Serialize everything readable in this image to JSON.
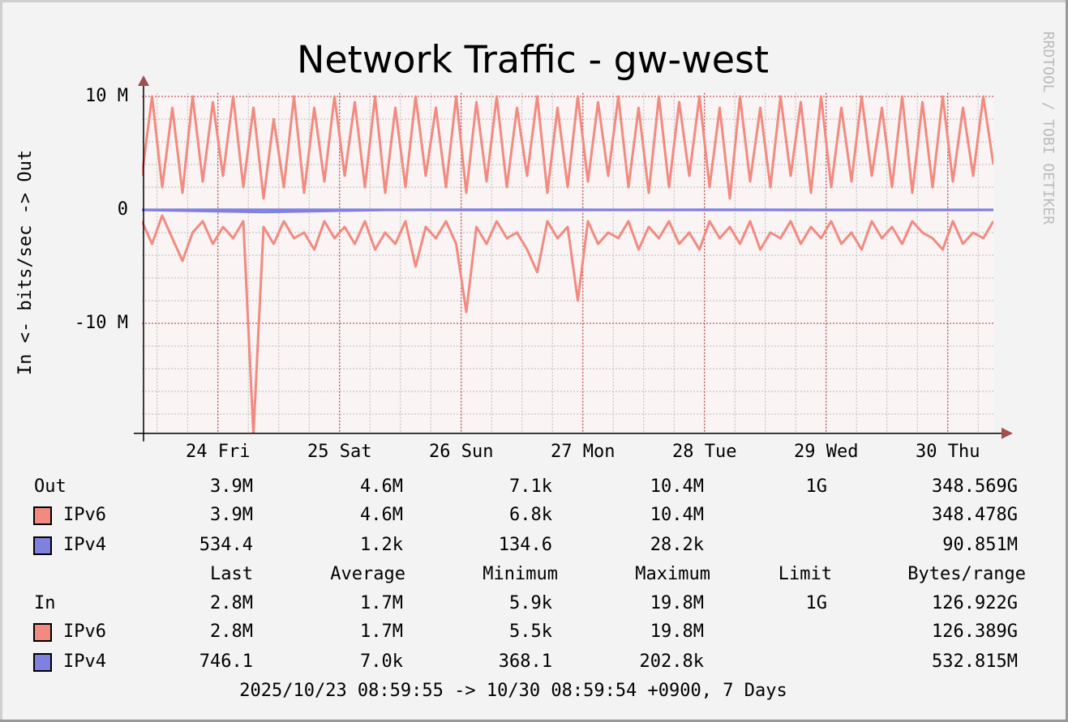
{
  "chart_data": {
    "type": "line",
    "title": "Network Traffic - gw-west",
    "y_label": "In <- bits/sec -> Out",
    "watermark": "RRDTOOL / TOBI OETIKER",
    "xlim": [
      0,
      168
    ],
    "xticks": [
      {
        "value": 15,
        "label": "24 Fri"
      },
      {
        "value": 39,
        "label": "25 Sat"
      },
      {
        "value": 63,
        "label": "26 Sun"
      },
      {
        "value": 87,
        "label": "27 Mon"
      },
      {
        "value": 111,
        "label": "28 Tue"
      },
      {
        "value": 135,
        "label": "29 Wed"
      },
      {
        "value": 159,
        "label": "30 Thu"
      }
    ],
    "ylim": [
      -19.7,
      10.3
    ],
    "yticks": [
      {
        "value": -10,
        "label": "-10 M"
      },
      0,
      {
        "value": 10,
        "label": "10 M"
      }
    ],
    "grid": true,
    "x": [
      0,
      2,
      4,
      6,
      8,
      10,
      12,
      14,
      16,
      18,
      20,
      22,
      24,
      26,
      28,
      30,
      32,
      34,
      36,
      38,
      40,
      42,
      44,
      46,
      48,
      50,
      52,
      54,
      56,
      58,
      60,
      62,
      64,
      66,
      68,
      70,
      72,
      74,
      76,
      78,
      80,
      82,
      84,
      86,
      88,
      90,
      92,
      94,
      96,
      98,
      100,
      102,
      104,
      106,
      108,
      110,
      112,
      114,
      116,
      118,
      120,
      122,
      124,
      126,
      128,
      130,
      132,
      134,
      136,
      138,
      140,
      142,
      144,
      146,
      148,
      150,
      152,
      154,
      156,
      158,
      160,
      162,
      164,
      166,
      168
    ],
    "series": [
      {
        "name": "IPv6",
        "direction": "Out",
        "color": "#f28a80",
        "values": [
          3,
          10,
          2,
          9,
          1.5,
          10,
          2.5,
          9.5,
          3,
          10,
          2,
          9,
          1,
          8,
          2,
          10,
          1.5,
          9,
          2.5,
          10,
          3,
          9.5,
          2,
          10,
          1.5,
          9,
          2,
          10,
          3,
          9,
          2,
          10,
          1.5,
          9.5,
          2.5,
          10,
          2,
          9,
          3,
          10,
          1.5,
          9,
          2,
          10,
          2.5,
          9.5,
          3,
          10,
          2,
          9,
          1.5,
          10,
          2,
          9.5,
          3,
          10,
          2,
          9,
          1,
          10,
          2.5,
          9,
          2,
          10,
          3,
          9.5,
          1.5,
          10,
          2,
          9,
          2.5,
          10,
          3,
          9,
          2,
          10,
          1.5,
          9.5,
          2,
          10,
          2.5,
          9,
          3,
          10,
          4
        ]
      },
      {
        "name": "IPv6",
        "direction": "In",
        "color": "#f28a80",
        "values": [
          -1,
          -3,
          -0.5,
          -2.5,
          -4.5,
          -2,
          -1,
          -3,
          -1.5,
          -2.5,
          -1,
          -19.8,
          -1.5,
          -3,
          -1,
          -2.5,
          -2,
          -3.5,
          -1,
          -2.5,
          -1.5,
          -3,
          -1,
          -3.5,
          -2,
          -3,
          -1,
          -5,
          -1.5,
          -2.5,
          -1,
          -3,
          -9,
          -1.5,
          -3,
          -1,
          -2.5,
          -2,
          -3.5,
          -5.5,
          -1,
          -2.5,
          -1.5,
          -8,
          -1,
          -3,
          -2,
          -2.5,
          -1,
          -3.5,
          -1.5,
          -2.5,
          -1,
          -3,
          -2,
          -3.5,
          -1,
          -2.5,
          -1.5,
          -3,
          -1,
          -3.5,
          -2,
          -2.5,
          -1,
          -3,
          -1.5,
          -2.5,
          -1,
          -3,
          -2,
          -3.5,
          -1,
          -2.5,
          -1.5,
          -3,
          -1,
          -2,
          -2.5,
          -3.5,
          -1,
          -3,
          -2,
          -2.5,
          -1
        ]
      },
      {
        "name": "IPv4",
        "direction": "Out",
        "color": "#8080e0",
        "x": [
          0,
          24,
          48,
          72,
          96,
          120,
          144,
          168
        ],
        "values": [
          0.01,
          0.02,
          0.01,
          0.03,
          0.01,
          0.02,
          0.01,
          0.01
        ]
      },
      {
        "name": "IPv4",
        "direction": "In",
        "color": "#8080e0",
        "x": [
          0,
          24,
          48,
          72,
          96,
          120,
          144,
          168
        ],
        "values": [
          -0.01,
          -0.2,
          -0.01,
          -0.02,
          -0.01,
          -0.01,
          -0.02,
          -0.01
        ]
      }
    ],
    "legend": {
      "header": [
        "Last",
        "Average",
        "Minimum",
        "Maximum",
        "Limit",
        "Bytes/range"
      ],
      "rows": [
        {
          "label": "Out",
          "cells": [
            "3.9M",
            "4.6M",
            "7.1k",
            "10.4M",
            "1G",
            "348.569G"
          ]
        },
        {
          "label": "IPv6",
          "color": "#f28a80",
          "cells": [
            "3.9M",
            "4.6M",
            "6.8k",
            "10.4M",
            null,
            "348.478G"
          ]
        },
        {
          "label": "IPv4",
          "color": "#8080e0",
          "cells": [
            "534.4",
            "1.2k",
            "134.6",
            "28.2k",
            null,
            "90.851M"
          ]
        },
        {
          "label": "In",
          "cells": [
            "2.8M",
            "1.7M",
            "5.9k",
            "19.8M",
            "1G",
            "126.922G"
          ]
        },
        {
          "label": "IPv6",
          "color": "#f28a80",
          "cells": [
            "2.8M",
            "1.7M",
            "5.5k",
            "19.8M",
            null,
            "126.389G"
          ]
        },
        {
          "label": "IPv4",
          "color": "#8080e0",
          "cells": [
            "746.1",
            "7.0k",
            "368.1",
            "202.8k",
            null,
            "532.815M"
          ]
        }
      ]
    },
    "footer": "2025/10/23 08:59:55 -> 10/30 08:59:54 +0900, 7 Days"
  }
}
